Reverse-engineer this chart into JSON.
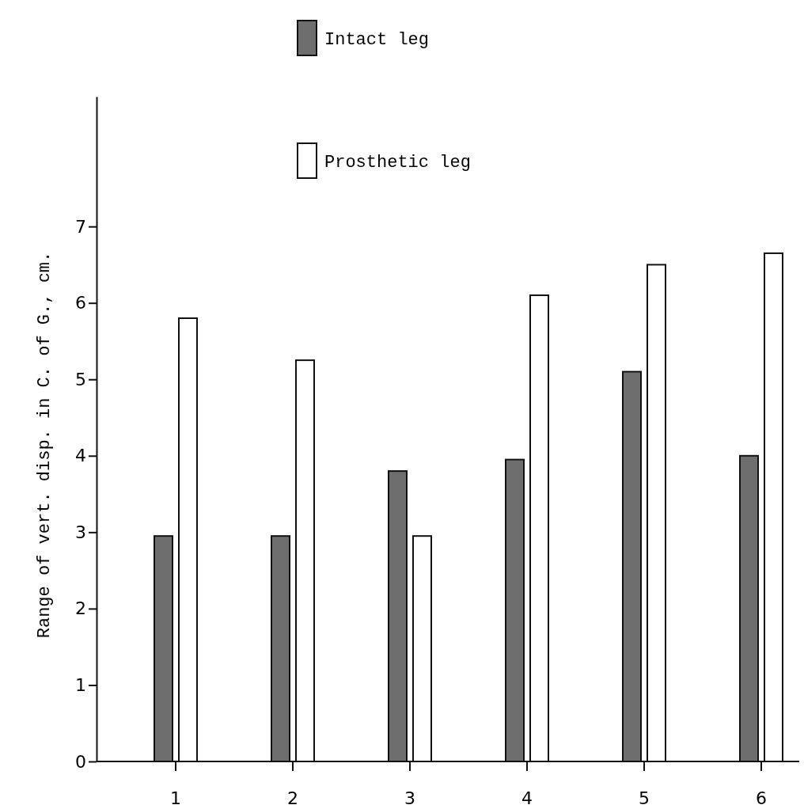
{
  "chart_data": {
    "type": "bar",
    "ylabel": "Range of vert. disp. in C. of G., cm.",
    "categories": [
      "1",
      "2",
      "3",
      "4",
      "5",
      "6"
    ],
    "series": [
      {
        "name": "Intact leg",
        "color": "#6e6e6e",
        "values": [
          2.95,
          2.95,
          3.8,
          3.95,
          5.1,
          4.0
        ]
      },
      {
        "name": "Prosthetic leg",
        "color": "#ffffff",
        "values": [
          5.8,
          5.25,
          2.95,
          6.1,
          6.5,
          6.65
        ]
      }
    ],
    "ylim": [
      0,
      8.7
    ],
    "yticks": [
      0,
      1,
      2,
      3,
      4,
      5,
      6,
      7
    ],
    "grid": false,
    "legend": "top"
  }
}
